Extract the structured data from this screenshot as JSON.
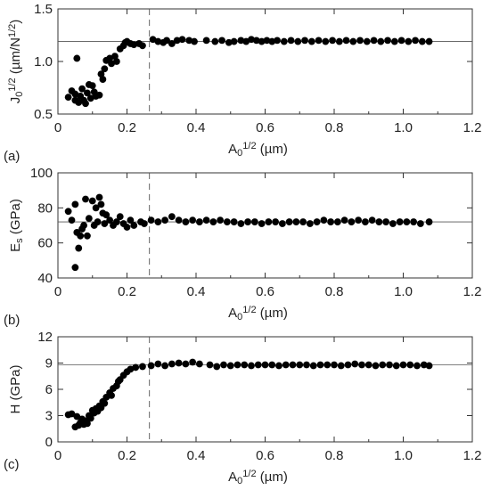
{
  "chart_data": [
    {
      "type": "scatter",
      "panel_label": "(a)",
      "xlabel_main": "A",
      "xlabel_sub": "0",
      "xlabel_sup": "1/2",
      "xlabel_unit": " (µm)",
      "ylabel_main": "J",
      "ylabel_sub": "0",
      "ylabel_sup": "1/2",
      "ylabel_unit": " (µm/N",
      "ylabel_unit_sup": "1/2",
      "ylabel_unit_end": ")",
      "xlim": [
        0,
        1.2
      ],
      "ylim": [
        0.5,
        1.5
      ],
      "xticks": [
        "0",
        "0.2",
        "0.4",
        "0.6",
        "0.8",
        "1.0",
        "1.2"
      ],
      "yticks": [
        "0.5",
        "1.0",
        "1.5"
      ],
      "reference_line_y": 1.19,
      "dashed_line_x": 0.265,
      "points": [
        [
          0.03,
          0.66
        ],
        [
          0.04,
          0.72
        ],
        [
          0.05,
          0.63
        ],
        [
          0.05,
          0.69
        ],
        [
          0.055,
          1.03
        ],
        [
          0.06,
          0.61
        ],
        [
          0.065,
          0.67
        ],
        [
          0.07,
          0.74
        ],
        [
          0.075,
          0.63
        ],
        [
          0.08,
          0.6
        ],
        [
          0.085,
          0.7
        ],
        [
          0.09,
          0.78
        ],
        [
          0.095,
          0.65
        ],
        [
          0.1,
          0.77
        ],
        [
          0.105,
          0.71
        ],
        [
          0.11,
          0.67
        ],
        [
          0.12,
          0.68
        ],
        [
          0.125,
          0.88
        ],
        [
          0.13,
          0.83
        ],
        [
          0.135,
          0.93
        ],
        [
          0.14,
          1.01
        ],
        [
          0.15,
          1.03
        ],
        [
          0.155,
          0.98
        ],
        [
          0.165,
          1.05
        ],
        [
          0.17,
          1.0
        ],
        [
          0.18,
          1.12
        ],
        [
          0.19,
          1.15
        ],
        [
          0.195,
          1.18
        ],
        [
          0.2,
          1.19
        ],
        [
          0.21,
          1.17
        ],
        [
          0.22,
          1.16
        ],
        [
          0.235,
          1.17
        ],
        [
          0.245,
          1.15
        ],
        [
          0.275,
          1.21
        ],
        [
          0.29,
          1.19
        ],
        [
          0.305,
          1.18
        ],
        [
          0.315,
          1.2
        ],
        [
          0.33,
          1.17
        ],
        [
          0.345,
          1.2
        ],
        [
          0.36,
          1.21
        ],
        [
          0.38,
          1.2
        ],
        [
          0.395,
          1.19
        ],
        [
          0.43,
          1.2
        ],
        [
          0.455,
          1.19
        ],
        [
          0.475,
          1.2
        ],
        [
          0.495,
          1.18
        ],
        [
          0.51,
          1.19
        ],
        [
          0.53,
          1.2
        ],
        [
          0.545,
          1.19
        ],
        [
          0.56,
          1.21
        ],
        [
          0.575,
          1.2
        ],
        [
          0.59,
          1.19
        ],
        [
          0.605,
          1.2
        ],
        [
          0.62,
          1.19
        ],
        [
          0.635,
          1.2
        ],
        [
          0.655,
          1.19
        ],
        [
          0.675,
          1.2
        ],
        [
          0.695,
          1.19
        ],
        [
          0.715,
          1.2
        ],
        [
          0.735,
          1.19
        ],
        [
          0.755,
          1.2
        ],
        [
          0.775,
          1.19
        ],
        [
          0.795,
          1.2
        ],
        [
          0.815,
          1.19
        ],
        [
          0.835,
          1.2
        ],
        [
          0.855,
          1.19
        ],
        [
          0.875,
          1.2
        ],
        [
          0.895,
          1.19
        ],
        [
          0.915,
          1.2
        ],
        [
          0.935,
          1.19
        ],
        [
          0.955,
          1.2
        ],
        [
          0.975,
          1.19
        ],
        [
          0.995,
          1.2
        ],
        [
          1.015,
          1.19
        ],
        [
          1.035,
          1.2
        ],
        [
          1.055,
          1.19
        ],
        [
          1.075,
          1.19
        ]
      ]
    },
    {
      "type": "scatter",
      "panel_label": "(b)",
      "xlabel_main": "A",
      "xlabel_sub": "0",
      "xlabel_sup": "1/2",
      "xlabel_unit": " (µm)",
      "ylabel_main": "E",
      "ylabel_sub": "s",
      "ylabel_sup": "",
      "ylabel_unit": " (GPa)",
      "ylabel_unit_sup": "",
      "ylabel_unit_end": "",
      "xlim": [
        0,
        1.2
      ],
      "ylim": [
        40,
        100
      ],
      "xticks": [
        "0",
        "0.2",
        "0.4",
        "0.6",
        "0.8",
        "1.0",
        "1.2"
      ],
      "yticks": [
        "40",
        "60",
        "80",
        "100"
      ],
      "reference_line_y": 72,
      "dashed_line_x": 0.265,
      "points": [
        [
          0.03,
          78
        ],
        [
          0.04,
          73
        ],
        [
          0.05,
          82
        ],
        [
          0.05,
          46
        ],
        [
          0.055,
          66
        ],
        [
          0.06,
          57
        ],
        [
          0.065,
          64
        ],
        [
          0.07,
          68
        ],
        [
          0.075,
          70
        ],
        [
          0.08,
          85
        ],
        [
          0.085,
          64
        ],
        [
          0.09,
          74
        ],
        [
          0.1,
          84
        ],
        [
          0.105,
          70
        ],
        [
          0.11,
          80
        ],
        [
          0.115,
          72
        ],
        [
          0.12,
          86
        ],
        [
          0.125,
          82
        ],
        [
          0.13,
          77
        ],
        [
          0.135,
          71
        ],
        [
          0.14,
          76
        ],
        [
          0.15,
          73
        ],
        [
          0.16,
          70
        ],
        [
          0.17,
          72
        ],
        [
          0.18,
          75
        ],
        [
          0.19,
          71
        ],
        [
          0.2,
          69
        ],
        [
          0.21,
          73
        ],
        [
          0.22,
          70
        ],
        [
          0.24,
          72
        ],
        [
          0.25,
          71
        ],
        [
          0.27,
          73
        ],
        [
          0.29,
          72
        ],
        [
          0.31,
          73
        ],
        [
          0.33,
          75
        ],
        [
          0.35,
          73
        ],
        [
          0.37,
          72
        ],
        [
          0.39,
          73
        ],
        [
          0.41,
          72
        ],
        [
          0.43,
          73
        ],
        [
          0.45,
          72
        ],
        [
          0.47,
          73
        ],
        [
          0.49,
          72
        ],
        [
          0.51,
          72
        ],
        [
          0.53,
          71
        ],
        [
          0.55,
          72
        ],
        [
          0.57,
          72
        ],
        [
          0.59,
          71
        ],
        [
          0.61,
          72
        ],
        [
          0.63,
          72
        ],
        [
          0.65,
          71
        ],
        [
          0.67,
          72
        ],
        [
          0.69,
          72
        ],
        [
          0.71,
          72
        ],
        [
          0.73,
          71
        ],
        [
          0.75,
          72
        ],
        [
          0.77,
          73
        ],
        [
          0.79,
          72
        ],
        [
          0.81,
          72
        ],
        [
          0.83,
          73
        ],
        [
          0.85,
          72
        ],
        [
          0.87,
          73
        ],
        [
          0.89,
          72
        ],
        [
          0.91,
          73
        ],
        [
          0.93,
          72
        ],
        [
          0.95,
          72
        ],
        [
          0.97,
          71
        ],
        [
          0.99,
          72
        ],
        [
          1.01,
          72
        ],
        [
          1.03,
          72
        ],
        [
          1.05,
          71
        ],
        [
          1.075,
          72
        ]
      ]
    },
    {
      "type": "scatter",
      "panel_label": "(c)",
      "xlabel_main": "A",
      "xlabel_sub": "0",
      "xlabel_sup": "1/2",
      "xlabel_unit": " (µm)",
      "ylabel_main": "H",
      "ylabel_sub": "",
      "ylabel_sup": "",
      "ylabel_unit": " (GPa)",
      "ylabel_unit_sup": "",
      "ylabel_unit_end": "",
      "xlim": [
        0,
        1.2
      ],
      "ylim": [
        0,
        12
      ],
      "xticks": [
        "0",
        "0.2",
        "0.4",
        "0.6",
        "0.8",
        "1.0",
        "1.2"
      ],
      "yticks": [
        "0",
        "3",
        "6",
        "9",
        "12"
      ],
      "reference_line_y": 8.8,
      "dashed_line_x": 0.265,
      "points": [
        [
          0.03,
          3.1
        ],
        [
          0.04,
          3.2
        ],
        [
          0.05,
          1.7
        ],
        [
          0.055,
          2.9
        ],
        [
          0.06,
          1.9
        ],
        [
          0.065,
          2.2
        ],
        [
          0.07,
          2.6
        ],
        [
          0.075,
          2.0
        ],
        [
          0.08,
          2.4
        ],
        [
          0.085,
          2.1
        ],
        [
          0.09,
          3.0
        ],
        [
          0.095,
          2.7
        ],
        [
          0.1,
          3.6
        ],
        [
          0.105,
          3.3
        ],
        [
          0.11,
          3.8
        ],
        [
          0.115,
          3.5
        ],
        [
          0.12,
          4.1
        ],
        [
          0.125,
          3.9
        ],
        [
          0.13,
          4.6
        ],
        [
          0.135,
          4.4
        ],
        [
          0.14,
          5.1
        ],
        [
          0.15,
          5.6
        ],
        [
          0.155,
          5.3
        ],
        [
          0.16,
          6.1
        ],
        [
          0.17,
          6.4
        ],
        [
          0.175,
          6.9
        ],
        [
          0.18,
          7.1
        ],
        [
          0.19,
          7.6
        ],
        [
          0.2,
          8.0
        ],
        [
          0.21,
          8.3
        ],
        [
          0.225,
          8.5
        ],
        [
          0.245,
          8.6
        ],
        [
          0.27,
          8.7
        ],
        [
          0.29,
          8.9
        ],
        [
          0.31,
          8.7
        ],
        [
          0.33,
          8.9
        ],
        [
          0.35,
          9.0
        ],
        [
          0.37,
          8.9
        ],
        [
          0.39,
          9.1
        ],
        [
          0.41,
          8.9
        ],
        [
          0.44,
          8.8
        ],
        [
          0.46,
          8.6
        ],
        [
          0.48,
          8.8
        ],
        [
          0.5,
          8.7
        ],
        [
          0.52,
          8.8
        ],
        [
          0.54,
          8.8
        ],
        [
          0.56,
          8.7
        ],
        [
          0.58,
          8.8
        ],
        [
          0.6,
          8.8
        ],
        [
          0.62,
          8.8
        ],
        [
          0.64,
          8.7
        ],
        [
          0.66,
          8.8
        ],
        [
          0.68,
          8.8
        ],
        [
          0.7,
          8.8
        ],
        [
          0.72,
          8.8
        ],
        [
          0.74,
          8.7
        ],
        [
          0.76,
          8.8
        ],
        [
          0.78,
          8.8
        ],
        [
          0.8,
          8.8
        ],
        [
          0.82,
          8.7
        ],
        [
          0.84,
          8.8
        ],
        [
          0.86,
          8.9
        ],
        [
          0.88,
          8.8
        ],
        [
          0.9,
          8.8
        ],
        [
          0.92,
          8.7
        ],
        [
          0.94,
          8.8
        ],
        [
          0.96,
          8.8
        ],
        [
          0.98,
          8.7
        ],
        [
          1.0,
          8.8
        ],
        [
          1.02,
          8.8
        ],
        [
          1.04,
          8.7
        ],
        [
          1.06,
          8.8
        ],
        [
          1.075,
          8.7
        ]
      ]
    }
  ]
}
